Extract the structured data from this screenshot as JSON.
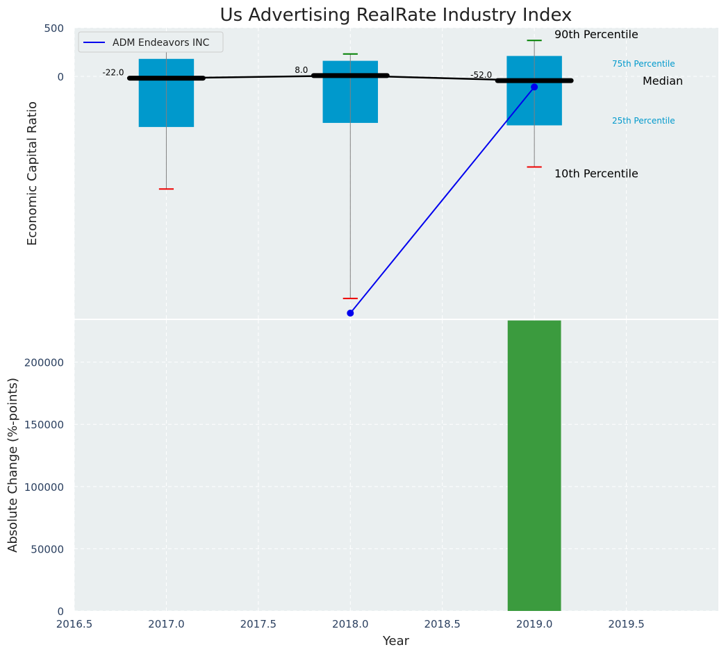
{
  "chart_data": [
    {
      "type": "bar",
      "panel": "top",
      "title": "Us Advertising RealRate Industry Index",
      "ylabel": "Economic Capital Ratio",
      "xlim": [
        2016.5,
        2020.0
      ],
      "ylim": [
        -3000,
        500
      ],
      "yticks": [
        0,
        500
      ],
      "grid": true,
      "legend": {
        "position": "top-left",
        "entries": [
          {
            "label": "ADM Endeavors INC",
            "color": "#0000ee"
          }
        ]
      },
      "percentile_bars": [
        {
          "year": 2017,
          "p10": -1380,
          "p25": -620,
          "median": -22,
          "p75": 180,
          "p90": 260,
          "median_label": "-22.0"
        },
        {
          "year": 2018,
          "p10": -2720,
          "p25": -570,
          "median": 8,
          "p75": 160,
          "p90": 230,
          "median_label": "8.0"
        },
        {
          "year": 2019,
          "p10": -1110,
          "p25": -600,
          "median": -52,
          "p75": 210,
          "p90": 370,
          "median_label": "-52.0"
        }
      ],
      "company_series": {
        "name": "ADM Endeavors INC",
        "x": [
          2018,
          2019
        ],
        "y": [
          -2900,
          -130
        ]
      },
      "annotations": {
        "p90": "90th Percentile",
        "p75": "75th Percentile",
        "median": "Median",
        "p25": "25th Percentile",
        "p10": "10th Percentile"
      }
    },
    {
      "type": "bar",
      "panel": "bottom",
      "xlabel": "Year",
      "ylabel": "Absolute Change (%-points)",
      "xlim": [
        2016.5,
        2020.0
      ],
      "ylim": [
        0,
        245000
      ],
      "yticks": [
        0,
        50000,
        100000,
        150000,
        200000
      ],
      "xticks": [
        2016.5,
        2017.0,
        2017.5,
        2018.0,
        2018.5,
        2019.0,
        2019.5
      ],
      "xtick_labels": [
        "2016.5",
        "2017.0",
        "2017.5",
        "2018.0",
        "2018.5",
        "2019.0",
        "2019.5"
      ],
      "grid": true,
      "bars": [
        {
          "year": 2019,
          "value": 233500
        }
      ]
    }
  ],
  "colors": {
    "panel_bg": "#eaeff0",
    "bar_blue": "#0099cc",
    "bar_green": "#3b9b3e",
    "median": "#000000",
    "whisker": "#808080",
    "p90_cap": "#008000",
    "p10_cap": "#ee0000",
    "company_line": "#0000ee",
    "tick_text": "#2a3f5f",
    "annot_blue": "#0099cc"
  }
}
